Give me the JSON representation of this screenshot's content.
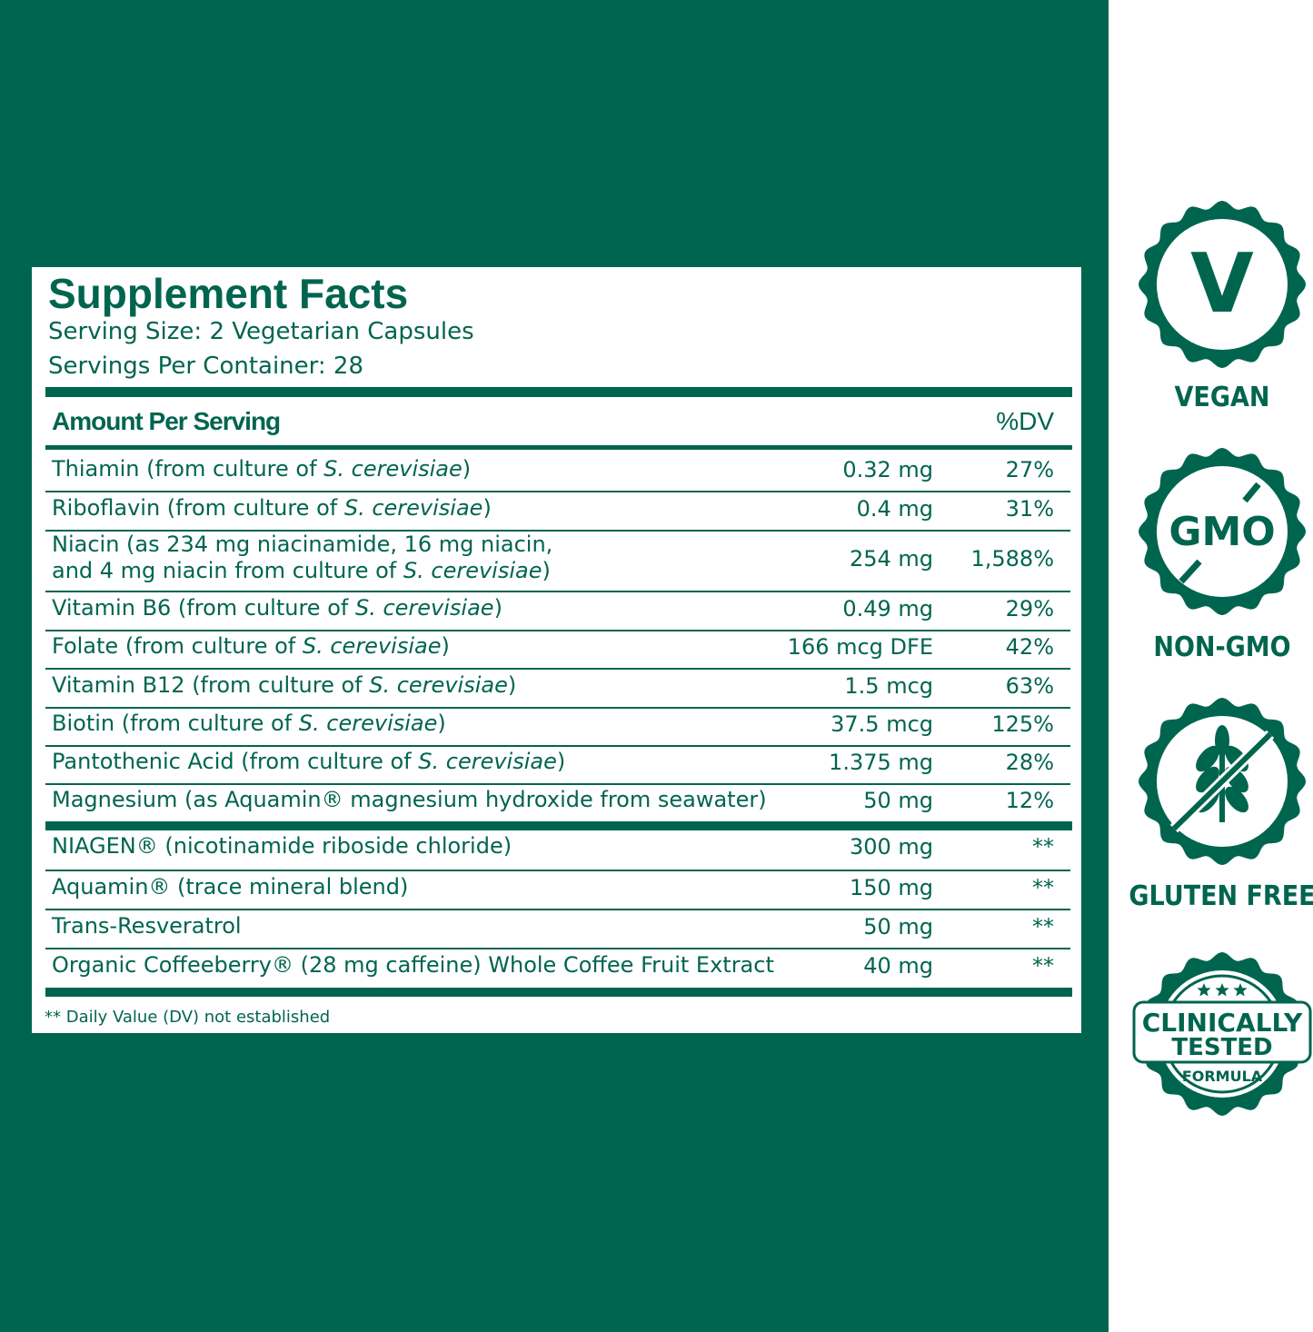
{
  "label": {
    "title": "Supplement Facts",
    "serving_size": "Serving Size: 2 Vegetarian Capsules",
    "servings_per_container": "Servings Per Container: 28",
    "header": {
      "amount": "Amount Per Serving",
      "dv": "%DV"
    },
    "groups": [
      [
        {
          "name": [
            [
              "Thiamin (from culture of ",
              {
                "text": "S. cerevisiae",
                "italic": true
              },
              ")"
            ]
          ],
          "amount": "0.32 mg",
          "dv": "27%"
        },
        {
          "name": [
            [
              "Riboflavin (from culture of ",
              {
                "text": "S. cerevisiae",
                "italic": true
              },
              ")"
            ]
          ],
          "amount": "0.4 mg",
          "dv": "31%"
        },
        {
          "name": [
            [
              "Niacin (as 234 mg niacinamide, 16 mg niacin,"
            ],
            [
              "and 4 mg niacin from culture of ",
              {
                "text": "S. cerevisiae",
                "italic": true
              },
              ")"
            ]
          ],
          "amount": "254 mg",
          "dv": "1,588%"
        },
        {
          "name": [
            [
              "Vitamin B6 (from culture of ",
              {
                "text": "S. cerevisiae",
                "italic": true
              },
              ")"
            ]
          ],
          "amount": "0.49 mg",
          "dv": "29%"
        },
        {
          "name": [
            [
              "Folate (from culture of ",
              {
                "text": "S. cerevisiae",
                "italic": true
              },
              ")"
            ]
          ],
          "amount": "166 mcg DFE",
          "dv": "42%"
        },
        {
          "name": [
            [
              "Vitamin B12 (from culture of ",
              {
                "text": "S. cerevisiae",
                "italic": true
              },
              ")"
            ]
          ],
          "amount": "1.5 mcg",
          "dv": "63%"
        },
        {
          "name": [
            [
              "Biotin (from culture of ",
              {
                "text": "S. cerevisiae",
                "italic": true
              },
              ")"
            ]
          ],
          "amount": "37.5 mcg",
          "dv": "125%"
        },
        {
          "name": [
            [
              "Pantothenic Acid (from culture of ",
              {
                "text": "S. cerevisiae",
                "italic": true
              },
              ")"
            ]
          ],
          "amount": "1.375 mg",
          "dv": "28%"
        },
        {
          "name": [
            [
              "Magnesium (as Aquamin® magnesium hydroxide from seawater)"
            ]
          ],
          "amount": "50 mg",
          "dv": "12%"
        }
      ],
      [
        {
          "name": [
            [
              "NIAGEN® (nicotinamide riboside chloride)"
            ]
          ],
          "amount": "300 mg",
          "dv": "**"
        },
        {
          "name": [
            [
              "Aquamin® (trace mineral blend)"
            ]
          ],
          "amount": "150 mg",
          "dv": "**"
        },
        {
          "name": [
            [
              "Trans-Resveratrol"
            ]
          ],
          "amount": "50 mg",
          "dv": "**"
        },
        {
          "name": [
            [
              "Organic Coffeeberry® (28 mg caffeine) Whole Coffee Fruit Extract"
            ]
          ],
          "amount": "40 mg",
          "dv": "**"
        }
      ]
    ],
    "footnote": "** Daily Value (DV) not established"
  },
  "badges": {
    "vegan": {
      "icon": "V",
      "label": "VEGAN"
    },
    "non_gmo": {
      "icon": "GMO",
      "label": "NON-GMO"
    },
    "gluten_free": {
      "label": "GLUTEN FREE"
    },
    "clinically_tested": {
      "line1": "CLINICALLY",
      "line2": "TESTED",
      "line3": "FORMULA"
    }
  }
}
